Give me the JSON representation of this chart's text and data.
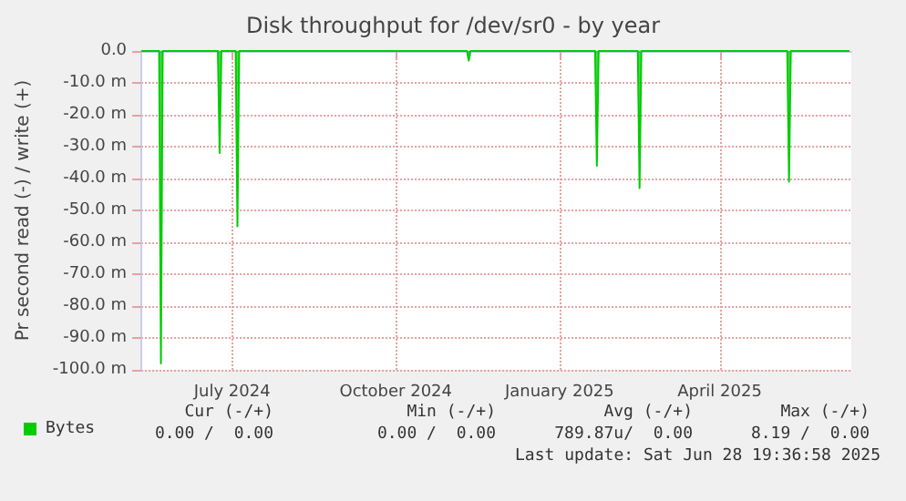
{
  "chart_data": {
    "type": "area",
    "title": "Disk throughput for /dev/sr0 - by year",
    "ylabel": "Pr second read (-) / write (+)",
    "x": [
      "2024-05-26",
      "2024-06-05",
      "2024-06-06",
      "2024-06-07",
      "2024-07-08",
      "2024-07-09",
      "2024-07-10",
      "2024-07-18",
      "2024-07-19",
      "2024-07-20",
      "2024-11-25",
      "2024-11-26",
      "2024-11-27",
      "2025-02-05",
      "2025-02-06",
      "2025-02-07",
      "2025-03-01",
      "2025-03-02",
      "2025-03-03",
      "2025-05-24",
      "2025-05-25",
      "2025-05-26",
      "2025-06-28"
    ],
    "series": [
      {
        "name": "Bytes",
        "color": "#00cc00",
        "values": [
          0,
          0,
          -98,
          0,
          0,
          -32,
          0,
          0,
          -55,
          0,
          0,
          -3,
          0,
          0,
          -36,
          0,
          0,
          -43,
          0,
          0,
          -41,
          0,
          0
        ]
      }
    ],
    "xlim": [
      "2024-05-26",
      "2025-06-29"
    ],
    "xticks": [
      {
        "value": "2024-07-16",
        "label": "July 2024"
      },
      {
        "value": "2024-10-16",
        "label": "October 2024"
      },
      {
        "value": "2025-01-16",
        "label": "January 2025"
      },
      {
        "value": "2025-04-16",
        "label": "April 2025"
      }
    ],
    "ylim": [
      -100,
      0
    ],
    "yticks": [
      {
        "value": -100,
        "label": "-100.0 m"
      },
      {
        "value": -90,
        "label": "-90.0 m"
      },
      {
        "value": -80,
        "label": "-80.0 m"
      },
      {
        "value": -70,
        "label": "-70.0 m"
      },
      {
        "value": -60,
        "label": "-60.0 m"
      },
      {
        "value": -50,
        "label": "-50.0 m"
      },
      {
        "value": -40,
        "label": "-40.0 m"
      },
      {
        "value": -30,
        "label": "-30.0 m"
      },
      {
        "value": -20,
        "label": "-20.0 m"
      },
      {
        "value": -10,
        "label": "-10.0 m"
      },
      {
        "value": 0,
        "label": "0.0"
      }
    ],
    "grid": true,
    "legend": "bottom left",
    "annotations": [
      "Cur (-/+)",
      "Min (-/+)",
      "Avg (-/+)",
      "Max (-/+)",
      "0.00 /  0.00",
      "0.00 /  0.00",
      "789.87u/  0.00",
      "8.19 /  0.00",
      "Last update: Sat Jun 28 19:36:58 2025"
    ]
  }
}
